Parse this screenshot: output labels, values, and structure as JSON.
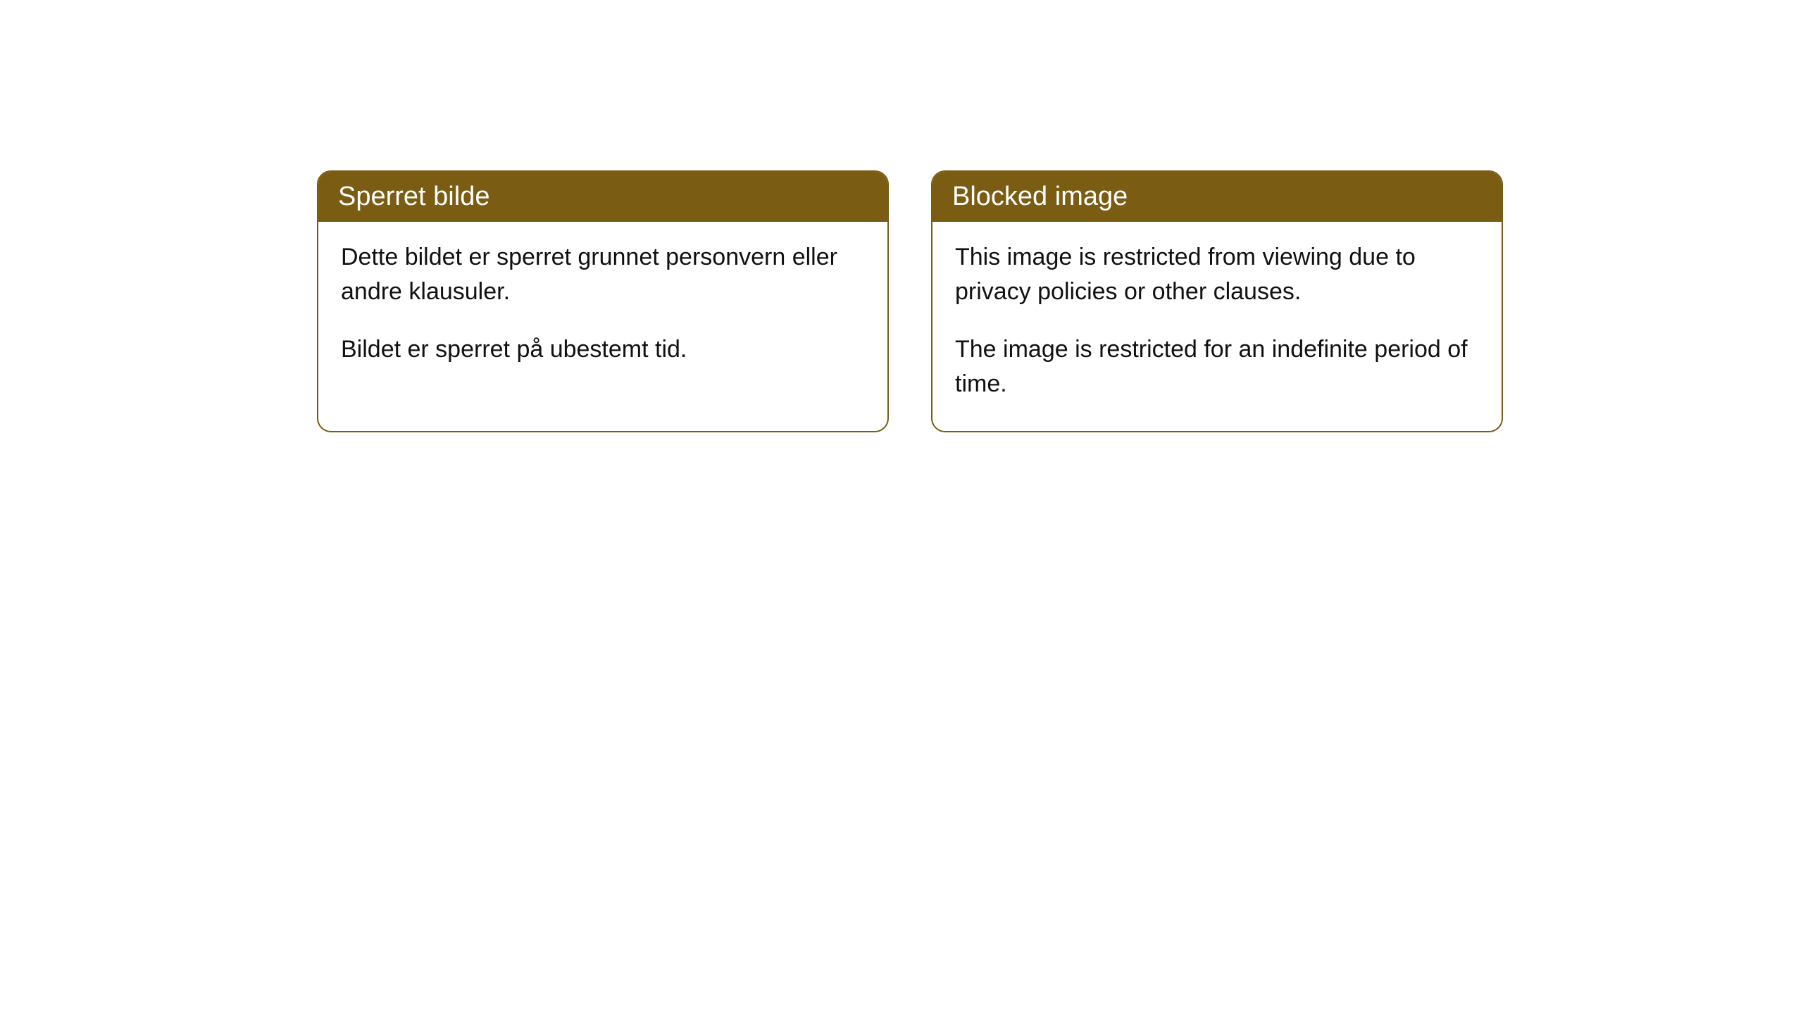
{
  "cards": [
    {
      "title": "Sperret bilde",
      "paragraph1": "Dette bildet er sperret grunnet personvern eller andre klausuler.",
      "paragraph2": "Bildet er sperret på ubestemt tid."
    },
    {
      "title": "Blocked image",
      "paragraph1": "This image is restricted from viewing due to privacy policies or other clauses.",
      "paragraph2": "The image is restricted for an indefinite period of time."
    }
  ],
  "styling": {
    "header_background": "#7a5c12",
    "header_text_color": "#ffffff",
    "border_color": "#7a5c12",
    "body_text_color": "#111111",
    "card_background": "#ffffff",
    "page_background": "#ffffff",
    "border_radius": 20,
    "title_fontsize": 38,
    "body_fontsize": 34
  }
}
